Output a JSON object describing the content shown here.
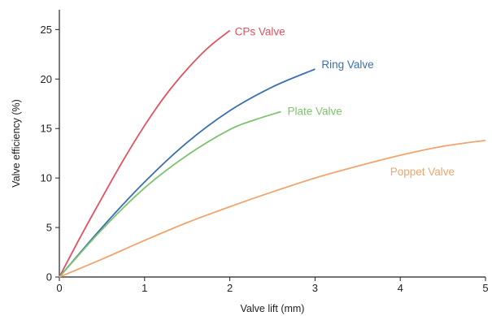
{
  "chart_data": {
    "type": "line",
    "title": "",
    "xlabel": "Valve lift (mm)",
    "ylabel": "Valve efficiency (%)",
    "xlim": [
      0,
      5
    ],
    "ylim": [
      0,
      27
    ],
    "x_ticks": [
      0,
      1,
      2,
      3,
      4,
      5
    ],
    "y_ticks": [
      0,
      5,
      10,
      15,
      20,
      25
    ],
    "grid": false,
    "legend": "inline labels at line ends",
    "series": [
      {
        "name": "CPs Valve",
        "color": "#e05260",
        "x": [
          0,
          0.25,
          0.5,
          0.75,
          1.0,
          1.25,
          1.5,
          1.75,
          2.0
        ],
        "y": [
          0,
          4.1,
          8.0,
          11.8,
          15.3,
          18.4,
          21.0,
          23.2,
          24.9
        ]
      },
      {
        "name": "Ring Valve",
        "color": "#3a6fb0",
        "x": [
          0,
          0.5,
          1.0,
          1.5,
          2.0,
          2.5,
          3.0
        ],
        "y": [
          0,
          5.0,
          9.6,
          13.6,
          16.8,
          19.2,
          21.0
        ]
      },
      {
        "name": "Plate Valve",
        "color": "#7cc36e",
        "x": [
          0,
          0.5,
          1.0,
          1.5,
          2.0,
          2.3,
          2.6
        ],
        "y": [
          0,
          4.8,
          9.0,
          12.3,
          14.9,
          15.9,
          16.7
        ]
      },
      {
        "name": "Poppet Valve",
        "color": "#f0a56e",
        "x": [
          0,
          0.5,
          1.0,
          1.5,
          2.0,
          2.5,
          3.0,
          3.5,
          4.0,
          4.5,
          5.0
        ],
        "y": [
          0,
          1.8,
          3.7,
          5.5,
          7.1,
          8.6,
          10.0,
          11.2,
          12.3,
          13.2,
          13.8
        ]
      }
    ]
  }
}
